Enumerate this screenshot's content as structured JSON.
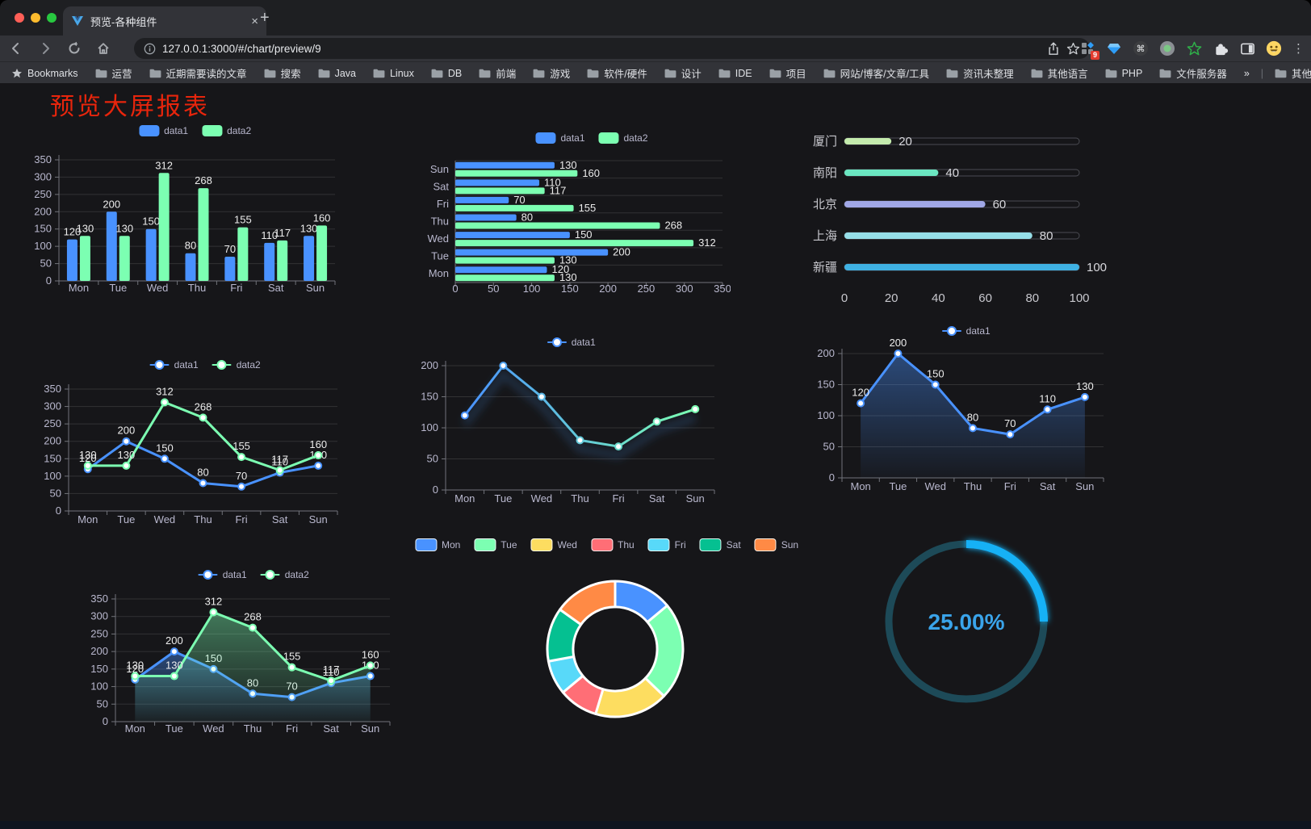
{
  "browser": {
    "tab_title": "预览-各种组件",
    "close_glyph": "×",
    "new_tab_glyph": "+",
    "url": "127.0.0.1:3000/#/chart/preview/9",
    "extension_badge": "9",
    "kebab_glyph": "⋮",
    "bookmarks_bar": {
      "root_label": "Bookmarks",
      "folders": [
        "运营",
        "近期需要读的文章",
        "搜索",
        "Java",
        "Linux",
        "DB",
        "前端",
        "游戏",
        "软件/硬件",
        "设计",
        "IDE",
        "项目",
        "网站/博客/文章/工具",
        "资讯未整理",
        "其他语言",
        "PHP",
        "文件服务器"
      ],
      "overflow": "»",
      "other": "其他书签"
    }
  },
  "page": {
    "title": "预览大屏报表"
  },
  "colors": {
    "data1": "#4992ff",
    "data2": "#7cffb2",
    "axis_label": "#B9B8CE",
    "grid": "rgba(255,255,255,0.12)",
    "axis_line": "#71737a",
    "value_label": "#ececec"
  },
  "chart_data": [
    {
      "id": "grouped-bar",
      "type": "bar",
      "categories": [
        "Mon",
        "Tue",
        "Wed",
        "Thu",
        "Fri",
        "Sat",
        "Sun"
      ],
      "series": [
        {
          "name": "data1",
          "values": [
            120,
            200,
            150,
            80,
            70,
            110,
            130
          ],
          "color": "#4992ff"
        },
        {
          "name": "data2",
          "values": [
            130,
            130,
            312,
            268,
            155,
            117,
            160
          ],
          "color": "#7cffb2"
        }
      ],
      "ylim": [
        0,
        350
      ],
      "ytick": 50,
      "legend_position": "top"
    },
    {
      "id": "horizontal-bar",
      "type": "bar",
      "horizontal": true,
      "categories": [
        "Mon",
        "Tue",
        "Wed",
        "Thu",
        "Fri",
        "Sat",
        "Sun"
      ],
      "series": [
        {
          "name": "data1",
          "values": [
            120,
            200,
            150,
            80,
            70,
            110,
            130
          ],
          "color": "#4992ff"
        },
        {
          "name": "data2",
          "values": [
            130,
            130,
            312,
            268,
            155,
            117,
            160
          ],
          "color": "#7cffb2"
        }
      ],
      "xlim": [
        0,
        350
      ],
      "xtick": 50,
      "legend_position": "top"
    },
    {
      "id": "progress-bars",
      "type": "bar",
      "horizontal": true,
      "categories": [
        "厦门",
        "南阳",
        "北京",
        "上海",
        "新疆"
      ],
      "values": [
        20,
        40,
        60,
        80,
        100
      ],
      "colors": [
        "#c4ebad",
        "#6be6c1",
        "#a0a7e6",
        "#96dee8",
        "#3fb1e3"
      ],
      "xlim": [
        0,
        100
      ],
      "xticks": [
        0,
        20,
        40,
        60,
        80,
        100
      ]
    },
    {
      "id": "line-two-series",
      "type": "line",
      "categories": [
        "Mon",
        "Tue",
        "Wed",
        "Thu",
        "Fri",
        "Sat",
        "Sun"
      ],
      "series": [
        {
          "name": "data1",
          "values": [
            120,
            200,
            150,
            80,
            70,
            110,
            130
          ],
          "color": "#4992ff"
        },
        {
          "name": "data2",
          "values": [
            130,
            130,
            312,
            268,
            155,
            117,
            160
          ],
          "color": "#7cffb2"
        }
      ],
      "ylim": [
        0,
        350
      ],
      "ytick": 50,
      "point_labels": true,
      "legend_position": "top"
    },
    {
      "id": "gradient-line",
      "type": "line",
      "categories": [
        "Mon",
        "Tue",
        "Wed",
        "Thu",
        "Fri",
        "Sat",
        "Sun"
      ],
      "series": [
        {
          "name": "data1",
          "values": [
            120,
            200,
            150,
            80,
            70,
            110,
            130
          ],
          "color": "#4992ff",
          "color_start": "#4992ff",
          "color_end": "#7cffb2"
        }
      ],
      "ylim": [
        0,
        200
      ],
      "ytick": 50,
      "point_labels": false,
      "legend_position": "top"
    },
    {
      "id": "area-line",
      "type": "area",
      "categories": [
        "Mon",
        "Tue",
        "Wed",
        "Thu",
        "Fri",
        "Sat",
        "Sun"
      ],
      "series": [
        {
          "name": "data1",
          "values": [
            120,
            200,
            150,
            80,
            70,
            110,
            130
          ],
          "color": "#4992ff"
        }
      ],
      "ylim": [
        0,
        200
      ],
      "ytick": 50,
      "point_labels": true,
      "legend_position": "top"
    },
    {
      "id": "two-series-area",
      "type": "area",
      "categories": [
        "Mon",
        "Tue",
        "Wed",
        "Thu",
        "Fri",
        "Sat",
        "Sun"
      ],
      "series": [
        {
          "name": "data1",
          "values": [
            120,
            200,
            150,
            80,
            70,
            110,
            130
          ],
          "color": "#4992ff"
        },
        {
          "name": "data2",
          "values": [
            130,
            130,
            312,
            268,
            155,
            117,
            160
          ],
          "color": "#7cffb2"
        }
      ],
      "ylim": [
        0,
        350
      ],
      "ytick": 50,
      "point_labels": true,
      "legend_position": "top"
    },
    {
      "id": "donut",
      "type": "pie",
      "categories": [
        "Mon",
        "Tue",
        "Wed",
        "Thu",
        "Fri",
        "Sat",
        "Sun"
      ],
      "values": [
        120,
        200,
        150,
        80,
        70,
        110,
        130
      ],
      "colors": [
        "#4992ff",
        "#7cffb2",
        "#fddd60",
        "#ff6e76",
        "#58d9f9",
        "#05c091",
        "#ff8a45"
      ],
      "inner_radius_ratio": 0.62,
      "legend_position": "top"
    },
    {
      "id": "gauge",
      "type": "gauge",
      "value": 25,
      "max": 100,
      "display": "25.00%",
      "track_color": "#1d4a58",
      "progress_color": "#12b1f6",
      "text_color": "#3aa4ea"
    }
  ]
}
